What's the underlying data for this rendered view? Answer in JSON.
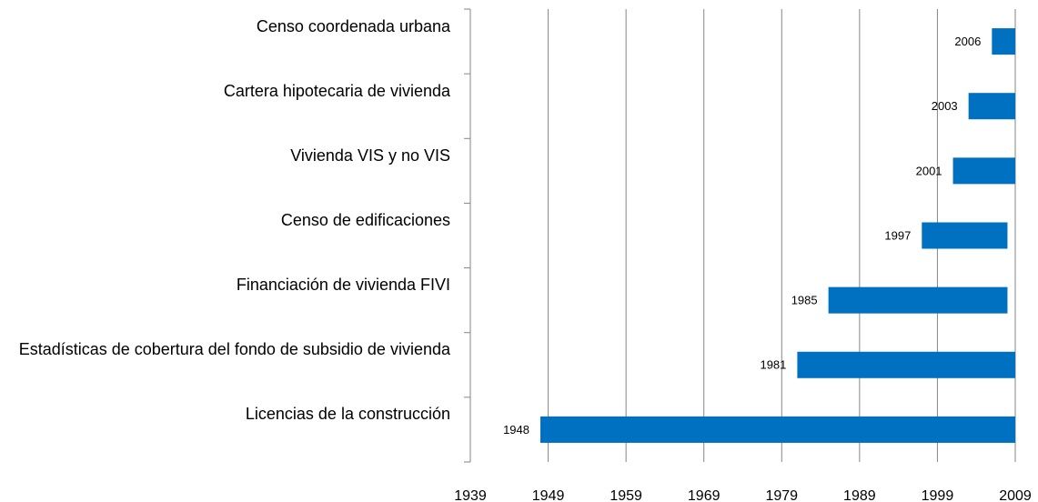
{
  "chart_data": {
    "type": "floating_bar",
    "categories": [
      "Censo coordenada urbana",
      "Cartera hipotecaria de vivienda",
      "Vivienda VIS y no VIS",
      "Censo de edificaciones",
      "Financiación de vivienda FIVI",
      "Estadísticas de cobertura del fondo de subsidio de vivienda",
      "Licencias de la construcción"
    ],
    "start": [
      2006,
      2003,
      2001,
      1997,
      1985,
      1981,
      1948
    ],
    "end": [
      2009,
      2009,
      2009,
      2008,
      2008,
      2009,
      2009
    ],
    "color": "#0070c0",
    "xlim": [
      1939,
      2009
    ],
    "xticks": [
      1939,
      1949,
      1959,
      1969,
      1979,
      1989,
      1999,
      2009
    ],
    "grid": true
  }
}
